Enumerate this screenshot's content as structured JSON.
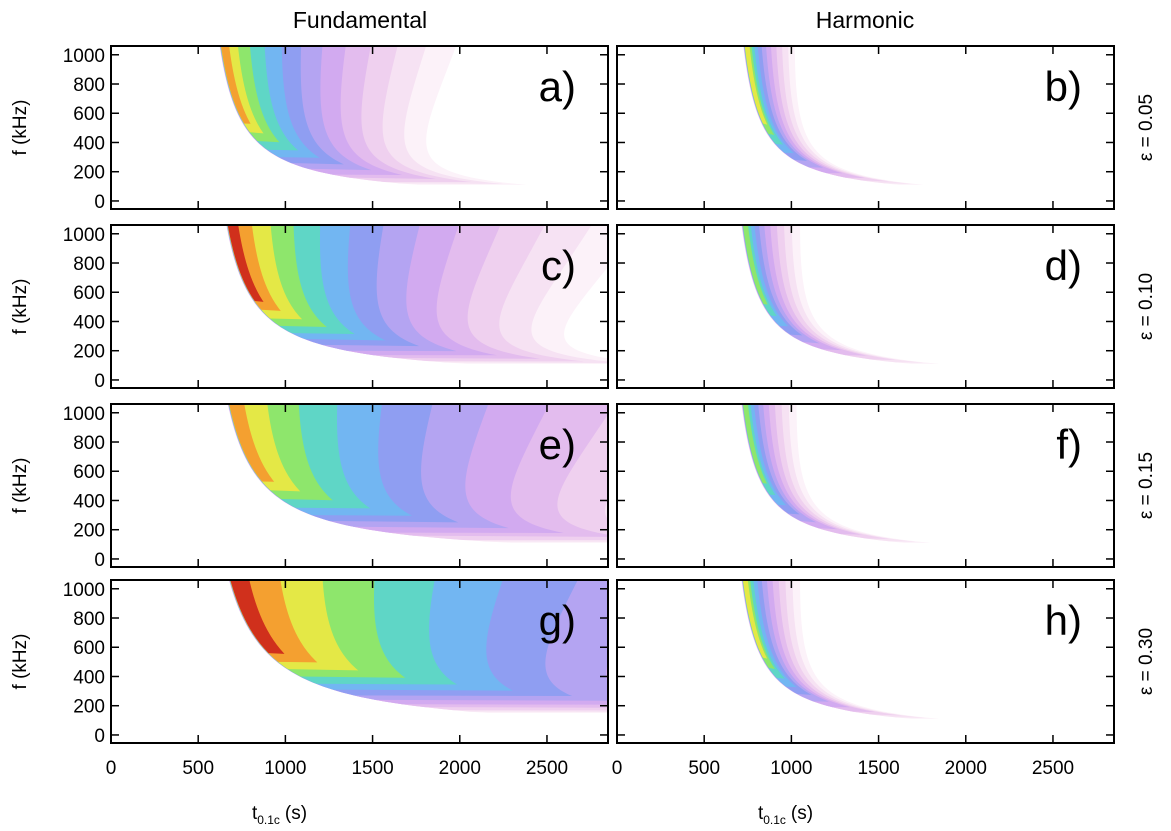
{
  "columns": [
    "Fundamental",
    "Harmonic"
  ],
  "rows": [
    "ε = 0.05",
    "ε = 0.10",
    "ε = 0.15",
    "ε = 0.30"
  ],
  "chart_data": [
    {
      "type": "contour",
      "label": "a)",
      "ylabel": "f (kHz)",
      "xlim": [
        0,
        2850
      ],
      "ylim": [
        -55,
        1060
      ],
      "xticks": [
        0,
        500,
        1000,
        1500,
        2000,
        2500
      ],
      "yticks": [
        0,
        200,
        400,
        600,
        800,
        1000
      ],
      "show_xtick_labels": false,
      "show_ytick_labels": true
    },
    {
      "type": "contour",
      "label": "b)",
      "xlim": [
        0,
        2850
      ],
      "ylim": [
        -55,
        1060
      ],
      "xticks": [
        0,
        500,
        1000,
        1500,
        2000,
        2500
      ],
      "yticks": [
        0,
        200,
        400,
        600,
        800,
        1000
      ],
      "show_xtick_labels": false,
      "show_ytick_labels": false
    },
    {
      "type": "contour",
      "label": "c)",
      "ylabel": "f (kHz)",
      "xlim": [
        0,
        2850
      ],
      "ylim": [
        -55,
        1060
      ],
      "xticks": [
        0,
        500,
        1000,
        1500,
        2000,
        2500
      ],
      "yticks": [
        0,
        200,
        400,
        600,
        800,
        1000
      ],
      "show_xtick_labels": false,
      "show_ytick_labels": true
    },
    {
      "type": "contour",
      "label": "d)",
      "xlim": [
        0,
        2850
      ],
      "ylim": [
        -55,
        1060
      ],
      "xticks": [
        0,
        500,
        1000,
        1500,
        2000,
        2500
      ],
      "yticks": [
        0,
        200,
        400,
        600,
        800,
        1000
      ],
      "show_xtick_labels": false,
      "show_ytick_labels": false
    },
    {
      "type": "contour",
      "label": "e)",
      "ylabel": "f (kHz)",
      "xlim": [
        0,
        2850
      ],
      "ylim": [
        -55,
        1060
      ],
      "xticks": [
        0,
        500,
        1000,
        1500,
        2000,
        2500
      ],
      "yticks": [
        0,
        200,
        400,
        600,
        800,
        1000
      ],
      "show_xtick_labels": false,
      "show_ytick_labels": true
    },
    {
      "type": "contour",
      "label": "f)",
      "xlim": [
        0,
        2850
      ],
      "ylim": [
        -55,
        1060
      ],
      "xticks": [
        0,
        500,
        1000,
        1500,
        2000,
        2500
      ],
      "yticks": [
        0,
        200,
        400,
        600,
        800,
        1000
      ],
      "show_xtick_labels": false,
      "show_ytick_labels": false
    },
    {
      "type": "contour",
      "label": "g)",
      "ylabel": "f (kHz)",
      "xlabel": {
        "main": "t",
        "sub": "0.1c",
        "unit": "(s)"
      },
      "xlim": [
        0,
        2850
      ],
      "ylim": [
        -55,
        1060
      ],
      "xticks": [
        0,
        500,
        1000,
        1500,
        2000,
        2500
      ],
      "yticks": [
        0,
        200,
        400,
        600,
        800,
        1000
      ],
      "show_xtick_labels": true,
      "show_ytick_labels": true
    },
    {
      "type": "contour",
      "label": "h)",
      "xlabel": {
        "main": "t",
        "sub": "0.1c",
        "unit": "(s)"
      },
      "xlim": [
        0,
        2850
      ],
      "ylim": [
        -55,
        1060
      ],
      "xticks": [
        0,
        500,
        1000,
        1500,
        2000,
        2500
      ],
      "yticks": [
        0,
        200,
        400,
        600,
        800,
        1000
      ],
      "show_xtick_labels": true,
      "show_ytick_labels": false
    }
  ]
}
